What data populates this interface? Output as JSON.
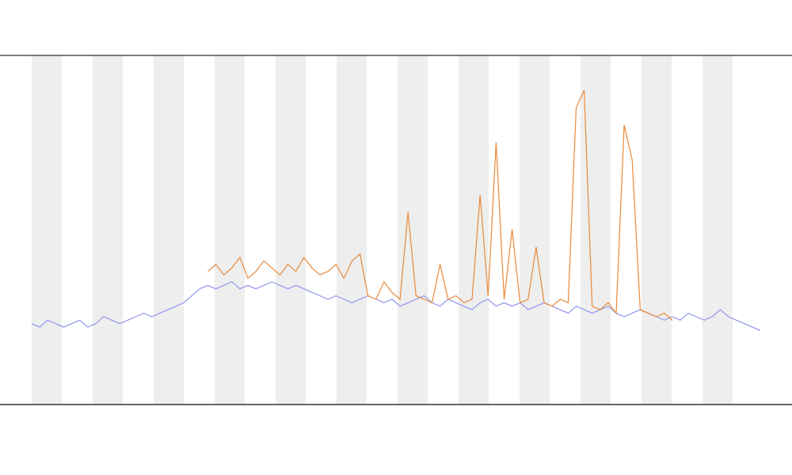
{
  "chart_data": {
    "type": "line",
    "categories": [
      null,
      null,
      null,
      null,
      null,
      null,
      null,
      null,
      null,
      null,
      null,
      null,
      null,
      null,
      null,
      null,
      null,
      null,
      null,
      null,
      null,
      null,
      null,
      null,
      null,
      null,
      null,
      null,
      null,
      null,
      null,
      null,
      null,
      null,
      null,
      null,
      null,
      null,
      null,
      null,
      null,
      null,
      null,
      null,
      null,
      null,
      null,
      null,
      null,
      null,
      null,
      null,
      null,
      null,
      null,
      null,
      null,
      null,
      null,
      null,
      null,
      null,
      null,
      null,
      null,
      null,
      null,
      null,
      null,
      null,
      null,
      null,
      null,
      null,
      null,
      null,
      null,
      null,
      null,
      null,
      null,
      null,
      null,
      null,
      null,
      null,
      null,
      null,
      null,
      null,
      null,
      null
    ],
    "ylim": [
      0,
      100
    ],
    "series": [
      {
        "color": "#8f95ee",
        "values": [
          23,
          22,
          24,
          23,
          22,
          23,
          24,
          22,
          23,
          25,
          24,
          23,
          24,
          25,
          26,
          25,
          26,
          27,
          28,
          29,
          31,
          33,
          34,
          33,
          34,
          35,
          33,
          34,
          33,
          34,
          35,
          34,
          33,
          34,
          33,
          32,
          31,
          30,
          31,
          30,
          29,
          30,
          31,
          30,
          29,
          30,
          28,
          29,
          30,
          31,
          29,
          28,
          30,
          29,
          28,
          27,
          29,
          30,
          28,
          29,
          28,
          29,
          27,
          28,
          29,
          28,
          27,
          26,
          28,
          27,
          26,
          27,
          28,
          26,
          25,
          26,
          27,
          26,
          25,
          24,
          25,
          24,
          26,
          25,
          24,
          25,
          27,
          25,
          24,
          23,
          22,
          21
        ]
      },
      {
        "color": "#e8893a",
        "values": [
          null,
          null,
          null,
          null,
          null,
          null,
          null,
          null,
          null,
          null,
          null,
          null,
          null,
          null,
          null,
          null,
          null,
          null,
          null,
          null,
          null,
          null,
          38,
          40,
          37,
          39,
          42,
          36,
          38,
          41,
          39,
          37,
          40,
          38,
          42,
          39,
          37,
          38,
          40,
          36,
          41,
          43,
          31,
          30,
          35,
          32,
          30,
          55,
          31,
          30,
          29,
          40,
          30,
          31,
          29,
          30,
          60,
          31,
          75,
          30,
          50,
          29,
          30,
          45,
          29,
          28,
          30,
          29,
          85,
          90,
          28,
          27,
          29,
          26,
          80,
          70,
          27,
          26,
          25,
          26,
          24,
          null,
          null,
          null,
          null,
          null,
          null,
          null,
          null,
          null,
          null,
          null
        ]
      }
    ]
  }
}
